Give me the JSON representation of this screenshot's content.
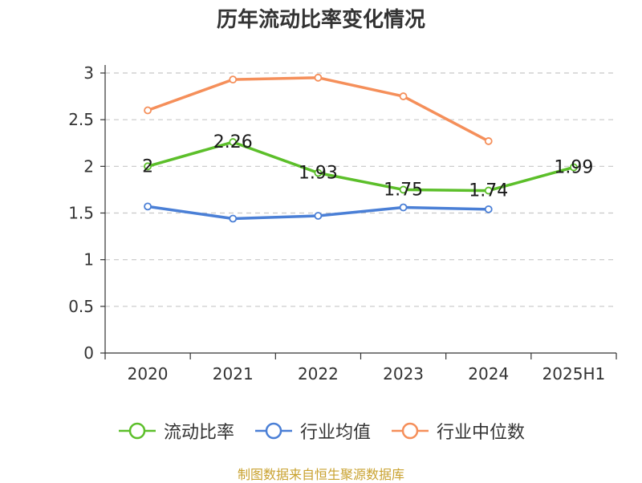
{
  "chart_data": {
    "type": "line",
    "title": "历年流动比率变化情况",
    "categories": [
      "2020",
      "2021",
      "2022",
      "2023",
      "2024",
      "2025H1"
    ],
    "ylim": [
      0,
      3
    ],
    "yticks": [
      0,
      0.5,
      1,
      1.5,
      2,
      2.5,
      3
    ],
    "ytick_labels": [
      "0",
      "0.5",
      "1",
      "1.5",
      "2",
      "2.5",
      "3"
    ],
    "grid": true,
    "legend_position": "bottom",
    "series": [
      {
        "name": "流动比率",
        "color": "#5cbf2a",
        "values": [
          2,
          2.26,
          1.93,
          1.75,
          1.74,
          1.99
        ],
        "labels": [
          "2",
          "2.26",
          "1.93",
          "1.75",
          "1.74",
          "1.99"
        ]
      },
      {
        "name": "行业均值",
        "color": "#4a7fd6",
        "values": [
          1.57,
          1.44,
          1.47,
          1.56,
          1.54,
          null
        ]
      },
      {
        "name": "行业中位数",
        "color": "#f58f5a",
        "values": [
          2.6,
          2.93,
          2.95,
          2.75,
          2.27,
          null
        ]
      }
    ]
  },
  "footer": {
    "source": "制图数据来自恒生聚源数据库"
  }
}
